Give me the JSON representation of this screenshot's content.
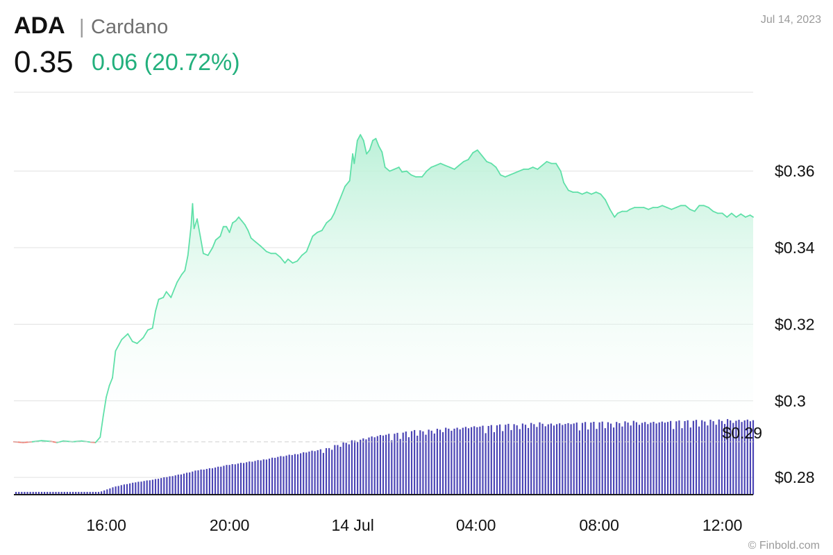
{
  "header": {
    "symbol": "ADA",
    "separator": "|",
    "name": "Cardano",
    "price": "0.35",
    "change": "0.06 (20.72%)",
    "date": "Jul 14, 2023"
  },
  "credit": "© Finbold.com",
  "colors": {
    "up_line": "#5fe0a8",
    "down_line": "#f07a6f",
    "area_top": "#b8f0d6",
    "volume_bar": "#4b45b5",
    "change_text": "#23b07d",
    "grid": "#e0e0e0"
  },
  "chart_data": {
    "type": "area",
    "y_ticks": [
      {
        "label": "$0.36",
        "value": 0.36
      },
      {
        "label": "$0.34",
        "value": 0.34
      },
      {
        "label": "$0.32",
        "value": 0.32
      },
      {
        "label": "$0.3",
        "value": 0.3
      },
      {
        "label": "$0.28",
        "value": 0.28
      }
    ],
    "ylim": [
      0.2755,
      0.3815
    ],
    "x_ticks": [
      {
        "label": "16:00",
        "value": 16
      },
      {
        "label": "20:00",
        "value": 20
      },
      {
        "label": "14 Jul",
        "value": 24
      },
      {
        "label": "04:00",
        "value": 28
      },
      {
        "label": "08:00",
        "value": 32
      },
      {
        "label": "12:00",
        "value": 36
      }
    ],
    "xlim": [
      13.0,
      37.0
    ],
    "reference_line": {
      "label": "$0.29",
      "value": 0.2893
    },
    "grid": true,
    "series": [
      {
        "values": [
          [
            13.0,
            0.2893
          ],
          [
            13.3,
            0.2891
          ],
          [
            13.6,
            0.2893
          ],
          [
            13.9,
            0.2896
          ],
          [
            14.2,
            0.2894
          ],
          [
            14.4,
            0.2891
          ],
          [
            14.6,
            0.2895
          ],
          [
            14.9,
            0.2893
          ],
          [
            15.2,
            0.2895
          ],
          [
            15.5,
            0.2892
          ],
          [
            15.65,
            0.2891
          ],
          [
            15.8,
            0.2905
          ],
          [
            15.9,
            0.296
          ],
          [
            16.0,
            0.301
          ],
          [
            16.1,
            0.304
          ],
          [
            16.2,
            0.306
          ],
          [
            16.3,
            0.313
          ],
          [
            16.5,
            0.316
          ],
          [
            16.7,
            0.3175
          ],
          [
            16.85,
            0.3155
          ],
          [
            17.0,
            0.315
          ],
          [
            17.2,
            0.3165
          ],
          [
            17.35,
            0.3185
          ],
          [
            17.5,
            0.319
          ],
          [
            17.6,
            0.3235
          ],
          [
            17.7,
            0.3265
          ],
          [
            17.85,
            0.327
          ],
          [
            17.95,
            0.3285
          ],
          [
            18.1,
            0.327
          ],
          [
            18.2,
            0.329
          ],
          [
            18.3,
            0.331
          ],
          [
            18.45,
            0.333
          ],
          [
            18.55,
            0.334
          ],
          [
            18.65,
            0.338
          ],
          [
            18.75,
            0.3455
          ],
          [
            18.8,
            0.3515
          ],
          [
            18.85,
            0.345
          ],
          [
            18.95,
            0.3475
          ],
          [
            19.05,
            0.343
          ],
          [
            19.15,
            0.3385
          ],
          [
            19.3,
            0.338
          ],
          [
            19.45,
            0.34
          ],
          [
            19.55,
            0.342
          ],
          [
            19.7,
            0.343
          ],
          [
            19.8,
            0.3455
          ],
          [
            19.9,
            0.3455
          ],
          [
            20.0,
            0.344
          ],
          [
            20.1,
            0.3465
          ],
          [
            20.2,
            0.347
          ],
          [
            20.3,
            0.348
          ],
          [
            20.4,
            0.347
          ],
          [
            20.5,
            0.346
          ],
          [
            20.6,
            0.3445
          ],
          [
            20.7,
            0.3425
          ],
          [
            20.85,
            0.3415
          ],
          [
            21.0,
            0.3405
          ],
          [
            21.2,
            0.339
          ],
          [
            21.35,
            0.3385
          ],
          [
            21.5,
            0.3385
          ],
          [
            21.65,
            0.3375
          ],
          [
            21.8,
            0.336
          ],
          [
            21.9,
            0.337
          ],
          [
            22.05,
            0.336
          ],
          [
            22.2,
            0.3365
          ],
          [
            22.35,
            0.338
          ],
          [
            22.5,
            0.339
          ],
          [
            22.6,
            0.341
          ],
          [
            22.7,
            0.343
          ],
          [
            22.85,
            0.344
          ],
          [
            23.0,
            0.3445
          ],
          [
            23.15,
            0.3465
          ],
          [
            23.3,
            0.3475
          ],
          [
            23.4,
            0.349
          ],
          [
            23.5,
            0.351
          ],
          [
            23.6,
            0.353
          ],
          [
            23.75,
            0.356
          ],
          [
            23.9,
            0.3575
          ],
          [
            24.0,
            0.3645
          ],
          [
            24.05,
            0.362
          ],
          [
            24.15,
            0.368
          ],
          [
            24.25,
            0.3695
          ],
          [
            24.35,
            0.368
          ],
          [
            24.45,
            0.3645
          ],
          [
            24.55,
            0.3655
          ],
          [
            24.65,
            0.368
          ],
          [
            24.75,
            0.3685
          ],
          [
            24.85,
            0.3665
          ],
          [
            24.95,
            0.365
          ],
          [
            25.05,
            0.361
          ],
          [
            25.2,
            0.36
          ],
          [
            25.35,
            0.3605
          ],
          [
            25.5,
            0.361
          ],
          [
            25.6,
            0.3598
          ],
          [
            25.75,
            0.36
          ],
          [
            25.9,
            0.359
          ],
          [
            26.05,
            0.3585
          ],
          [
            26.25,
            0.3585
          ],
          [
            26.4,
            0.36
          ],
          [
            26.55,
            0.361
          ],
          [
            26.7,
            0.3615
          ],
          [
            26.85,
            0.362
          ],
          [
            27.0,
            0.3615
          ],
          [
            27.15,
            0.361
          ],
          [
            27.3,
            0.3605
          ],
          [
            27.45,
            0.3615
          ],
          [
            27.6,
            0.3625
          ],
          [
            27.75,
            0.363
          ],
          [
            27.9,
            0.3648
          ],
          [
            28.05,
            0.3655
          ],
          [
            28.2,
            0.364
          ],
          [
            28.35,
            0.3625
          ],
          [
            28.5,
            0.362
          ],
          [
            28.65,
            0.361
          ],
          [
            28.8,
            0.359
          ],
          [
            28.95,
            0.3585
          ],
          [
            29.1,
            0.359
          ],
          [
            29.25,
            0.3595
          ],
          [
            29.4,
            0.36
          ],
          [
            29.55,
            0.3605
          ],
          [
            29.7,
            0.3605
          ],
          [
            29.85,
            0.361
          ],
          [
            30.0,
            0.3605
          ],
          [
            30.15,
            0.3615
          ],
          [
            30.3,
            0.3625
          ],
          [
            30.45,
            0.362
          ],
          [
            30.6,
            0.362
          ],
          [
            30.75,
            0.36
          ],
          [
            30.85,
            0.357
          ],
          [
            31.0,
            0.355
          ],
          [
            31.15,
            0.3545
          ],
          [
            31.3,
            0.3545
          ],
          [
            31.45,
            0.354
          ],
          [
            31.6,
            0.3545
          ],
          [
            31.75,
            0.354
          ],
          [
            31.9,
            0.3545
          ],
          [
            32.05,
            0.354
          ],
          [
            32.2,
            0.3525
          ],
          [
            32.35,
            0.35
          ],
          [
            32.5,
            0.348
          ],
          [
            32.6,
            0.349
          ],
          [
            32.75,
            0.3495
          ],
          [
            32.9,
            0.3495
          ],
          [
            33.0,
            0.35
          ],
          [
            33.15,
            0.3505
          ],
          [
            33.3,
            0.3505
          ],
          [
            33.45,
            0.3505
          ],
          [
            33.6,
            0.35
          ],
          [
            33.75,
            0.3505
          ],
          [
            33.9,
            0.3505
          ],
          [
            34.05,
            0.351
          ],
          [
            34.2,
            0.3505
          ],
          [
            34.35,
            0.35
          ],
          [
            34.5,
            0.3505
          ],
          [
            34.65,
            0.351
          ],
          [
            34.8,
            0.351
          ],
          [
            34.95,
            0.35
          ],
          [
            35.1,
            0.3495
          ],
          [
            35.25,
            0.351
          ],
          [
            35.4,
            0.351
          ],
          [
            35.55,
            0.3505
          ],
          [
            35.7,
            0.3495
          ],
          [
            35.85,
            0.349
          ],
          [
            36.0,
            0.349
          ],
          [
            36.15,
            0.348
          ],
          [
            36.3,
            0.349
          ],
          [
            36.45,
            0.348
          ],
          [
            36.6,
            0.3488
          ],
          [
            36.75,
            0.348
          ],
          [
            36.9,
            0.3485
          ],
          [
            37.0,
            0.348
          ]
        ]
      }
    ],
    "volume": [
      [
        13.0,
        0.02
      ],
      [
        13.6,
        0.02
      ],
      [
        14.2,
        0.02
      ],
      [
        14.8,
        0.02
      ],
      [
        15.2,
        0.02
      ],
      [
        15.6,
        0.025
      ],
      [
        15.8,
        0.04
      ],
      [
        16.0,
        0.07
      ],
      [
        16.2,
        0.1
      ],
      [
        16.5,
        0.13
      ],
      [
        17.0,
        0.17
      ],
      [
        17.5,
        0.2
      ],
      [
        18.0,
        0.24
      ],
      [
        18.5,
        0.28
      ],
      [
        19.0,
        0.33
      ],
      [
        19.5,
        0.36
      ],
      [
        20.0,
        0.4
      ],
      [
        20.5,
        0.43
      ],
      [
        21.0,
        0.46
      ],
      [
        21.5,
        0.5
      ],
      [
        22.0,
        0.53
      ],
      [
        22.5,
        0.57
      ],
      [
        23.0,
        0.6
      ],
      [
        23.5,
        0.67
      ],
      [
        24.0,
        0.72
      ],
      [
        24.5,
        0.77
      ],
      [
        25.0,
        0.8
      ],
      [
        25.5,
        0.82
      ],
      [
        26.0,
        0.85
      ],
      [
        26.5,
        0.86
      ],
      [
        27.0,
        0.88
      ],
      [
        27.5,
        0.9
      ],
      [
        28.0,
        0.91
      ],
      [
        28.5,
        0.92
      ],
      [
        29.0,
        0.93
      ],
      [
        29.5,
        0.94
      ],
      [
        30.0,
        0.95
      ],
      [
        30.5,
        0.95
      ],
      [
        31.0,
        0.95
      ],
      [
        31.5,
        0.96
      ],
      [
        32.0,
        0.96
      ],
      [
        32.5,
        0.96
      ],
      [
        33.0,
        0.97
      ],
      [
        33.5,
        0.97
      ],
      [
        34.0,
        0.97
      ],
      [
        34.5,
        0.98
      ],
      [
        35.0,
        0.98
      ],
      [
        35.5,
        0.99
      ],
      [
        36.0,
        0.99
      ],
      [
        36.5,
        1.0
      ],
      [
        37.0,
        1.0
      ]
    ]
  }
}
